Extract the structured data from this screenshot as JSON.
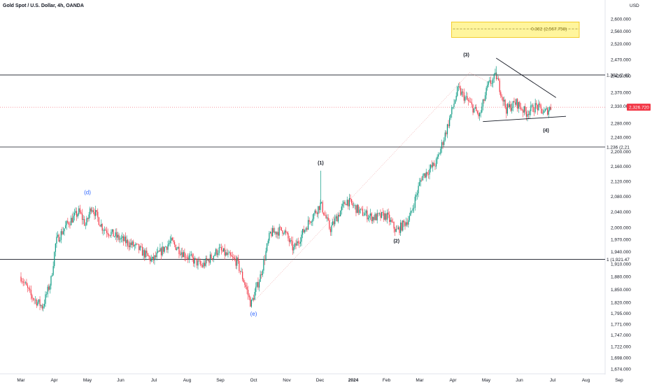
{
  "header": {
    "title": "Gold Spot / U.S. Dollar, 4h, OANDA",
    "currency": "USD"
  },
  "colors": {
    "up": "#089981",
    "down": "#f23645",
    "price_tag": "#f23645",
    "zone_fill": "#fff59d",
    "zone_border": "#f0c20b"
  },
  "chart_data": {
    "type": "candlestick",
    "y_axis": {
      "ticks": [
        2600,
        2560,
        2520,
        2470,
        2420,
        2370,
        2330,
        2280,
        2240,
        2200,
        2160,
        2120,
        2080,
        2040,
        2000,
        1970,
        1940,
        1910,
        1880,
        1850,
        1820,
        1795,
        1771,
        1747,
        1722,
        1698,
        1674
      ],
      "tick_labels": [
        "2,600.000",
        "2,560.000",
        "2,520.000",
        "2,470.000",
        "2,420.000",
        "2,370.000",
        "2,330.000",
        "2,280.000",
        "2,240.000",
        "2,200.000",
        "2,160.000",
        "2,120.000",
        "2,080.000",
        "2,040.000",
        "2,000.000",
        "1,970.000",
        "1,940.000",
        "1,910.000",
        "1,880.000",
        "1,850.000",
        "1,820.000",
        "1,795.000",
        "1,771.000",
        "1,747.000",
        "1,722.000",
        "1,698.000",
        "1,674.000"
      ],
      "scale": "log"
    },
    "x_axis": {
      "tick_labels": [
        "Mar",
        "Apr",
        "May",
        "Jun",
        "Jul",
        "Aug",
        "Sep",
        "Oct",
        "Nov",
        "Dec",
        "2024",
        "Feb",
        "Mar",
        "Apr",
        "May",
        "Jun",
        "Jul",
        "Aug",
        "Sep"
      ],
      "tick_months": [
        0,
        1,
        2,
        3,
        4,
        5,
        6,
        7,
        8,
        9,
        10,
        11,
        12,
        13,
        14,
        15,
        16,
        17,
        18
      ]
    },
    "price_path": [
      {
        "m": 0.0,
        "p": 1880
      },
      {
        "m": 0.3,
        "p": 1835
      },
      {
        "m": 0.65,
        "p": 1810
      },
      {
        "m": 0.9,
        "p": 1870
      },
      {
        "m": 1.05,
        "p": 1965
      },
      {
        "m": 1.4,
        "p": 2010
      },
      {
        "m": 1.75,
        "p": 2040
      },
      {
        "m": 1.95,
        "p": 2005
      },
      {
        "m": 2.12,
        "p": 2055
      },
      {
        "m": 2.45,
        "p": 2000
      },
      {
        "m": 2.9,
        "p": 1975
      },
      {
        "m": 3.5,
        "p": 1950
      },
      {
        "m": 3.95,
        "p": 1918
      },
      {
        "m": 4.5,
        "p": 1965
      },
      {
        "m": 4.9,
        "p": 1935
      },
      {
        "m": 5.45,
        "p": 1905
      },
      {
        "m": 5.95,
        "p": 1945
      },
      {
        "m": 6.5,
        "p": 1915
      },
      {
        "m": 6.75,
        "p": 1860
      },
      {
        "m": 6.92,
        "p": 1815
      },
      {
        "m": 7.2,
        "p": 1880
      },
      {
        "m": 7.5,
        "p": 1985
      },
      {
        "m": 7.9,
        "p": 1995
      },
      {
        "m": 8.2,
        "p": 1945
      },
      {
        "m": 8.7,
        "p": 2020
      },
      {
        "m": 9.02,
        "p": 2060
      },
      {
        "m": 9.3,
        "p": 1995
      },
      {
        "m": 9.8,
        "p": 2070
      },
      {
        "m": 10.2,
        "p": 2040
      },
      {
        "m": 10.6,
        "p": 2025
      },
      {
        "m": 11.0,
        "p": 2030
      },
      {
        "m": 11.3,
        "p": 1990
      },
      {
        "m": 11.7,
        "p": 2025
      },
      {
        "m": 12.05,
        "p": 2130
      },
      {
        "m": 12.5,
        "p": 2170
      },
      {
        "m": 12.8,
        "p": 2260
      },
      {
        "m": 13.15,
        "p": 2380
      },
      {
        "m": 13.4,
        "p": 2350
      },
      {
        "m": 13.8,
        "p": 2300
      },
      {
        "m": 14.05,
        "p": 2390
      },
      {
        "m": 14.3,
        "p": 2420
      },
      {
        "m": 14.6,
        "p": 2320
      },
      {
        "m": 14.9,
        "p": 2340
      },
      {
        "m": 15.2,
        "p": 2310
      },
      {
        "m": 15.5,
        "p": 2330
      },
      {
        "m": 15.75,
        "p": 2310
      },
      {
        "m": 15.95,
        "p": 2326.72
      }
    ],
    "spike_highs": [
      {
        "m": 9.02,
        "p": 2148
      },
      {
        "m": 14.3,
        "p": 2450
      }
    ],
    "horizontal_levels": [
      {
        "label": "1.382 (2,42",
        "price": 2423
      },
      {
        "label": "1.236 (2,21",
        "price": 2213
      },
      {
        "label": "1 (1,921.47",
        "price": 1921.47
      }
    ],
    "current_price": {
      "label": "2,326.720",
      "price": 2326.72
    },
    "fib_zone": {
      "label": "0.382 (2,567.758)",
      "top": 2590,
      "mid": 2567.758,
      "bottom": 2540,
      "m_start": 13.0,
      "m_end": 16.8
    },
    "wave_labels": [
      {
        "text": "(d)",
        "m": 2.0,
        "p": 2085,
        "style": "blue"
      },
      {
        "text": "(e)",
        "m": 7.0,
        "p": 1790,
        "style": "blue"
      },
      {
        "text": "(1)",
        "m": 9.02,
        "p": 2165,
        "style": "dark"
      },
      {
        "text": "(2)",
        "m": 11.3,
        "p": 1962,
        "style": "dark"
      },
      {
        "text": "(3)",
        "m": 13.4,
        "p": 2480,
        "style": "dark"
      },
      {
        "text": "(4)",
        "m": 15.8,
        "p": 2255,
        "style": "dark"
      }
    ],
    "triangle": {
      "upper": [
        {
          "m": 14.3,
          "p": 2475
        },
        {
          "m": 16.1,
          "p": 2355
        }
      ],
      "lower": [
        {
          "m": 13.9,
          "p": 2285
        },
        {
          "m": 16.4,
          "p": 2300
        }
      ]
    },
    "dotted_lines": [
      [
        {
          "m": 6.92,
          "p": 1815
        },
        {
          "m": 13.5,
          "p": 2430
        }
      ],
      [
        {
          "m": 13.5,
          "p": 2430
        },
        {
          "m": 14.2,
          "p": 2395
        }
      ]
    ]
  }
}
